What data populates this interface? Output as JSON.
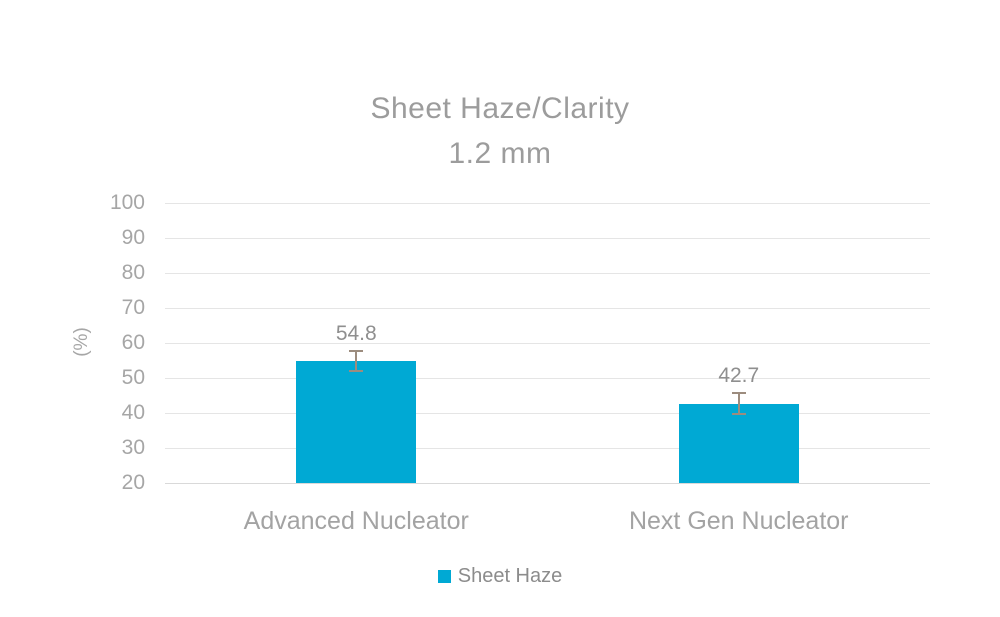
{
  "chart_data": {
    "type": "bar",
    "title_line1": "Sheet Haze/Clarity",
    "title_line2": "1.2 mm",
    "ylabel": "(%)",
    "xlabel": "",
    "categories": [
      "Advanced Nucleator",
      "Next Gen Nucleator"
    ],
    "series": [
      {
        "name": "Sheet Haze",
        "values": [
          54.8,
          42.7
        ],
        "errors": [
          2.9,
          2.9
        ]
      }
    ],
    "data_labels": [
      "54.8",
      "42.7"
    ],
    "ylim": [
      20,
      100
    ],
    "yticks": [
      20,
      30,
      40,
      50,
      60,
      70,
      80,
      90,
      100
    ],
    "grid": "horizontal gridlines on",
    "legend_position": "bottom",
    "colors": {
      "bar": "#00A9D4",
      "error_bar": "#9C8C7E",
      "gridline": "#E5E5E5",
      "axis_line": "#D9D9D9",
      "tick_text": "#A6A6A6",
      "title_text": "#9C9C9C",
      "category_text": "#A3A3A3",
      "data_label_text": "#8F8F8F",
      "legend_text": "#8C8C8C",
      "background": "#FFFFFF"
    }
  }
}
